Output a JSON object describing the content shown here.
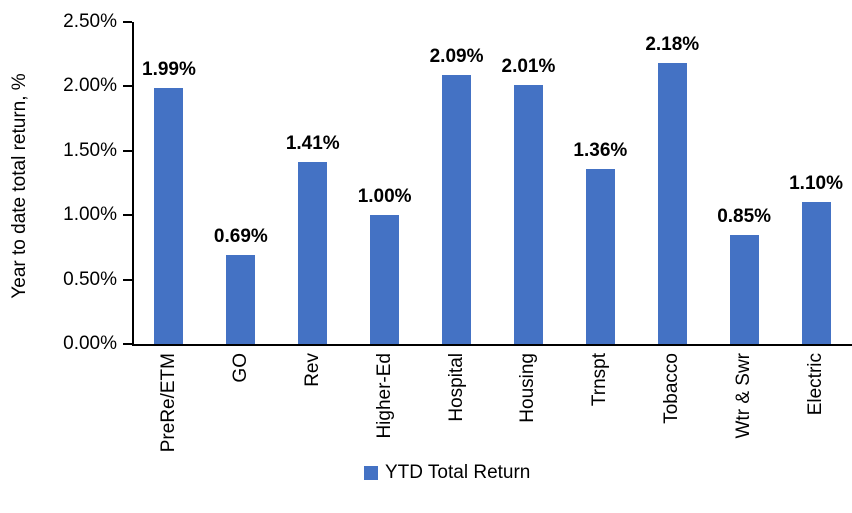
{
  "chart_data": {
    "type": "bar",
    "title": "",
    "ylabel": "Year to date total return, %",
    "xlabel": "",
    "categories": [
      "PreRe/ETM",
      "GO",
      "Rev",
      "Higher-Ed",
      "Hospital",
      "Housing",
      "Trnspt",
      "Tobacco",
      "Wtr & Swr",
      "Electric"
    ],
    "values": [
      1.99,
      0.69,
      1.41,
      1.0,
      2.09,
      2.01,
      1.36,
      2.18,
      0.85,
      1.1
    ],
    "value_labels": [
      "1.99%",
      "0.69%",
      "1.41%",
      "1.00%",
      "2.09%",
      "2.01%",
      "1.36%",
      "2.18%",
      "0.85%",
      "1.10%"
    ],
    "ylim": [
      0,
      2.5
    ],
    "ytick_values": [
      0,
      0.5,
      1.0,
      1.5,
      2.0,
      2.5
    ],
    "ytick_labels": [
      "0.00%",
      "0.50%",
      "1.00%",
      "1.50%",
      "2.00%",
      "2.50%"
    ],
    "grid": false,
    "bar_color": "#4472C4",
    "legend_position": "bottom",
    "legend": {
      "label": "YTD Total Return",
      "color": "#4472C4"
    }
  }
}
